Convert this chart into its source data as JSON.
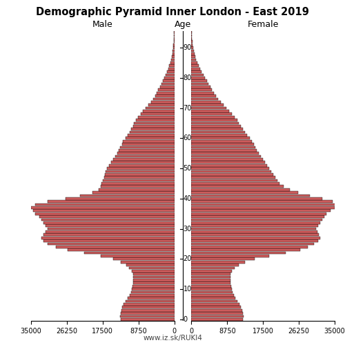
{
  "title": "Demographic Pyramid Inner London - East 2019",
  "male_label": "Male",
  "female_label": "Female",
  "age_label": "Age",
  "footer": "www.iz.sk/RUKI4",
  "bar_color": "#CD5C5C",
  "edge_color": "#000000",
  "background_color": "#ffffff",
  "xlim": 35000,
  "age_groups": [
    0,
    1,
    2,
    3,
    4,
    5,
    6,
    7,
    8,
    9,
    10,
    11,
    12,
    13,
    14,
    15,
    16,
    17,
    18,
    19,
    20,
    21,
    22,
    23,
    24,
    25,
    26,
    27,
    28,
    29,
    30,
    31,
    32,
    33,
    34,
    35,
    36,
    37,
    38,
    39,
    40,
    41,
    42,
    43,
    44,
    45,
    46,
    47,
    48,
    49,
    50,
    51,
    52,
    53,
    54,
    55,
    56,
    57,
    58,
    59,
    60,
    61,
    62,
    63,
    64,
    65,
    66,
    67,
    68,
    69,
    70,
    71,
    72,
    73,
    74,
    75,
    76,
    77,
    78,
    79,
    80,
    81,
    82,
    83,
    84,
    85,
    86,
    87,
    88,
    89,
    90,
    91,
    92,
    93,
    94,
    95
  ],
  "male": [
    13000,
    13200,
    13100,
    12900,
    12700,
    12400,
    11900,
    11400,
    10900,
    10600,
    10400,
    10200,
    10100,
    10000,
    10000,
    10100,
    10400,
    11000,
    11800,
    13000,
    15000,
    18000,
    22000,
    26000,
    29000,
    31000,
    32000,
    32500,
    32000,
    31500,
    31000,
    31500,
    32000,
    32500,
    33000,
    34000,
    34500,
    35000,
    34000,
    31000,
    26500,
    23000,
    20000,
    18500,
    18000,
    17800,
    17500,
    17200,
    17000,
    16800,
    16400,
    15900,
    15400,
    14900,
    14400,
    14000,
    13600,
    13200,
    12800,
    12500,
    11900,
    11400,
    10900,
    10500,
    10100,
    9800,
    9400,
    8800,
    8200,
    7600,
    7000,
    6300,
    5700,
    5100,
    4700,
    4300,
    3900,
    3500,
    3100,
    2750,
    2400,
    2050,
    1750,
    1450,
    1200,
    1000,
    820,
    650,
    500,
    380,
    280,
    200,
    140,
    95,
    60,
    35
  ],
  "female": [
    12500,
    12700,
    12600,
    12400,
    12100,
    11800,
    11300,
    10800,
    10400,
    10100,
    9900,
    9700,
    9600,
    9500,
    9500,
    9600,
    9900,
    10500,
    11500,
    13000,
    15500,
    19000,
    23000,
    26500,
    28500,
    30000,
    31000,
    31500,
    31200,
    30800,
    30500,
    31000,
    31500,
    32000,
    32500,
    33000,
    34000,
    35000,
    35500,
    34500,
    32000,
    29000,
    26000,
    24000,
    22500,
    21500,
    21000,
    20500,
    20000,
    19500,
    19000,
    18500,
    18000,
    17500,
    17000,
    16500,
    16000,
    15600,
    15200,
    14800,
    14200,
    13600,
    13000,
    12500,
    12000,
    11600,
    11200,
    10600,
    9900,
    9200,
    8500,
    7800,
    7100,
    6500,
    6000,
    5500,
    5000,
    4600,
    4200,
    3750,
    3300,
    2900,
    2450,
    2050,
    1700,
    1400,
    1150,
    950,
    750,
    580,
    440,
    320,
    230,
    160,
    100,
    60
  ]
}
